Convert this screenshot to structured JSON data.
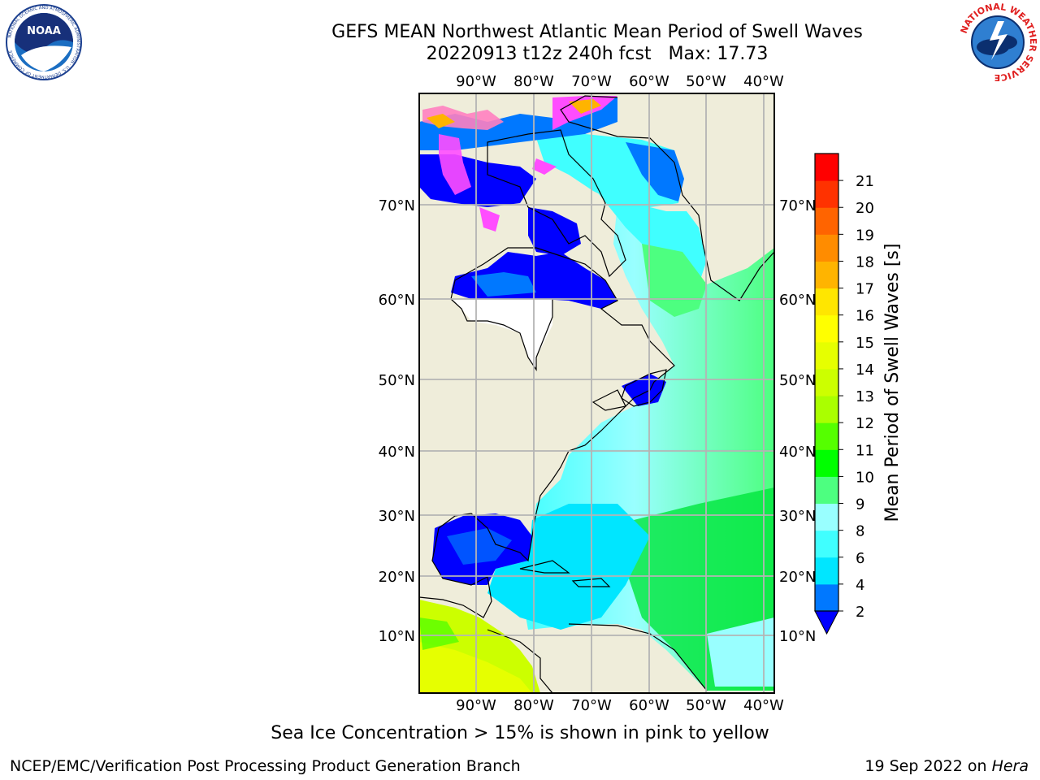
{
  "header": {
    "title_line1": "GEFS MEAN Northwest Atlantic Mean Period of Swell Waves",
    "title_line2": "20220913 t12z 240h fcst   Max: 17.73"
  },
  "logos": {
    "noaa_text": "NOAA",
    "noaa_ring_text": "NATIONAL OCEANIC AND ATMOSPHERIC ADMINISTRATION · U.S. DEPARTMENT OF COMMERCE",
    "nws_ring_text": "NATIONAL WEATHER SERVICE"
  },
  "map": {
    "lon_labels": [
      "90°W",
      "80°W",
      "70°W",
      "60°W",
      "50°W",
      "40°W"
    ],
    "lat_labels": [
      "70°N",
      "60°N",
      "50°N",
      "40°N",
      "30°N",
      "20°N",
      "10°N"
    ],
    "colors": {
      "land": "#efedda",
      "ice_region": "#ffffff",
      "gridline": "#b4b4b4",
      "coast": "#000000"
    }
  },
  "colorbar": {
    "label": "Mean Period of Swell Waves [s]",
    "ticks": [
      "2",
      "4",
      "6",
      "8",
      "9",
      "10",
      "11",
      "12",
      "13",
      "14",
      "15",
      "16",
      "17",
      "18",
      "19",
      "20",
      "21"
    ],
    "extend_color": "#0000ff",
    "colors": [
      "#0078ff",
      "#00e6ff",
      "#40ffff",
      "#99ffff",
      "#4dff80",
      "#00ff00",
      "#55ff00",
      "#aaff00",
      "#ccff00",
      "#e6ff00",
      "#ffff00",
      "#ffe600",
      "#ffb400",
      "#ff8c00",
      "#ff6400",
      "#ff3200",
      "#ff0000"
    ]
  },
  "notes": {
    "ice": "Sea Ice Concentration > 15% is shown in pink to yellow"
  },
  "footer": {
    "org": "NCEP/EMC/Verification Post Processing Product Generation Branch",
    "date": "19 Sep 2022 on",
    "host": "Hera"
  }
}
